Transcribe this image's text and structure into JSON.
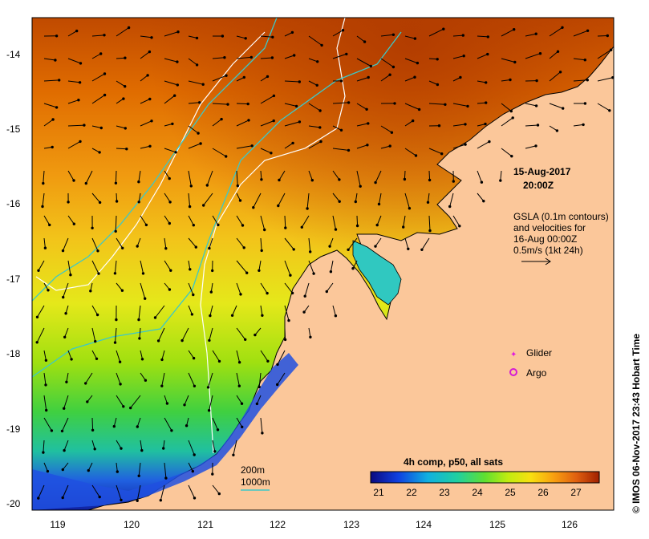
{
  "map": {
    "title_date": "15-Aug-2017",
    "title_time": "20:00Z",
    "annotation_lines": [
      "GSLA (0.1m contours)",
      "and velocities for",
      "16-Aug 00:00Z",
      "0.5m/s (1kt 24h)"
    ],
    "legend_glider": "Glider",
    "legend_argo": "Argo",
    "contour_200m": "200m",
    "contour_1000m": "1000m",
    "colorbar_title": "4h comp, p50, all sats",
    "colorbar_ticks": [
      "21",
      "22",
      "23",
      "24",
      "25",
      "26",
      "27"
    ],
    "lat_ticks": [
      "-14",
      "-15",
      "-16",
      "-17",
      "-18",
      "-19",
      "-20"
    ],
    "lon_ticks": [
      "119",
      "120",
      "121",
      "122",
      "123",
      "124",
      "125",
      "126"
    ],
    "credit": "© IMOS 06-Nov-2017 23:43 Hobart Time",
    "colors": {
      "land": "#fbc79a",
      "glider": "#e01ae0",
      "argo": "#d41bd4",
      "contour_200m": "#ffffff",
      "contour_1000m": "#3cc8c8"
    }
  }
}
